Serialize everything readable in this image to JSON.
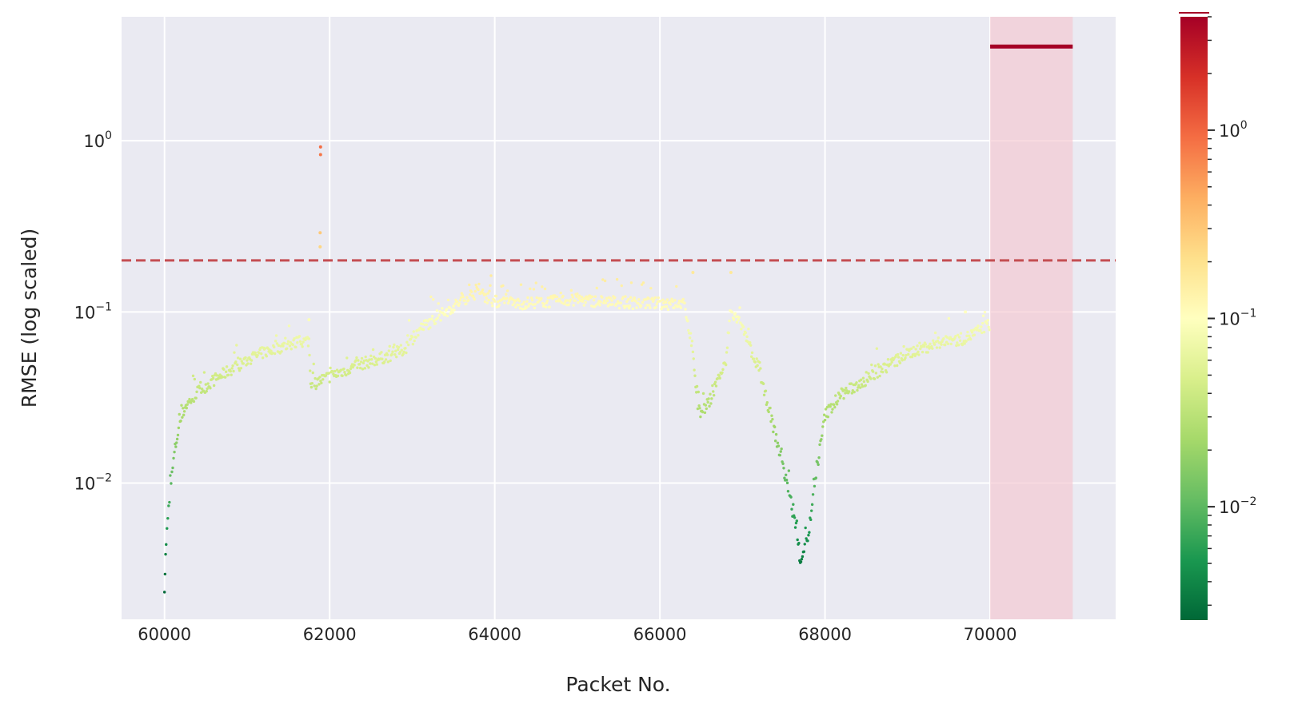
{
  "chart_data": {
    "type": "scatter",
    "title": "",
    "xlabel": "Packet No.",
    "ylabel": "RMSE (log scaled)",
    "yscale": "log",
    "xlim": [
      59480,
      71520
    ],
    "ylim": [
      0.0016,
      5.3
    ],
    "xticks": [
      60000,
      62000,
      64000,
      66000,
      68000,
      70000
    ],
    "xtick_labels": [
      "60000",
      "62000",
      "64000",
      "66000",
      "68000",
      "70000"
    ],
    "yticks": [
      {
        "value": 0.01,
        "base": "10",
        "exp": "−2"
      },
      {
        "value": 0.1,
        "base": "10",
        "exp": "−1"
      },
      {
        "value": 1,
        "base": "10",
        "exp": "0"
      }
    ],
    "grid": true,
    "background": "#eaeaf2",
    "threshold": {
      "value": 0.2,
      "color": "#c44e52",
      "style": "dashed"
    },
    "highlight_region": {
      "x": [
        70000,
        71000
      ],
      "color": "#f4c6cf"
    },
    "colormap": "RdYlGn_r",
    "colorbar": {
      "scale": "log",
      "range": [
        0.0025,
        4.0
      ],
      "ticks": [
        {
          "value": 0.01,
          "base": "10",
          "exp": "−2"
        },
        {
          "value": 0.1,
          "base": "10",
          "exp": "−1"
        },
        {
          "value": 1,
          "base": "10",
          "exp": "0"
        }
      ]
    },
    "trend_points": [
      [
        60000,
        0.0025
      ],
      [
        60020,
        0.0045
      ],
      [
        60050,
        0.007
      ],
      [
        60080,
        0.01
      ],
      [
        60120,
        0.015
      ],
      [
        60180,
        0.022
      ],
      [
        60250,
        0.028
      ],
      [
        60400,
        0.034
      ],
      [
        60600,
        0.04
      ],
      [
        60800,
        0.046
      ],
      [
        61000,
        0.052
      ],
      [
        61200,
        0.058
      ],
      [
        61400,
        0.062
      ],
      [
        61600,
        0.066
      ],
      [
        61750,
        0.068
      ],
      [
        61770,
        0.037
      ],
      [
        61900,
        0.04
      ],
      [
        62100,
        0.044
      ],
      [
        62400,
        0.05
      ],
      [
        62700,
        0.055
      ],
      [
        62900,
        0.06
      ],
      [
        63100,
        0.08
      ],
      [
        63400,
        0.1
      ],
      [
        63700,
        0.125
      ],
      [
        63800,
        0.13
      ],
      [
        64000,
        0.115
      ],
      [
        64300,
        0.112
      ],
      [
        64700,
        0.115
      ],
      [
        65000,
        0.118
      ],
      [
        65300,
        0.115
      ],
      [
        65700,
        0.113
      ],
      [
        66000,
        0.112
      ],
      [
        66300,
        0.11
      ],
      [
        66400,
        0.06
      ],
      [
        66450,
        0.03
      ],
      [
        66500,
        0.025
      ],
      [
        66600,
        0.03
      ],
      [
        66700,
        0.04
      ],
      [
        66800,
        0.05
      ],
      [
        66850,
        0.1
      ],
      [
        66950,
        0.09
      ],
      [
        67100,
        0.06
      ],
      [
        67300,
        0.03
      ],
      [
        67500,
        0.012
      ],
      [
        67650,
        0.0055
      ],
      [
        67700,
        0.0035
      ],
      [
        67800,
        0.005
      ],
      [
        67900,
        0.012
      ],
      [
        68000,
        0.025
      ],
      [
        68200,
        0.033
      ],
      [
        68500,
        0.04
      ],
      [
        68800,
        0.05
      ],
      [
        69100,
        0.06
      ],
      [
        69400,
        0.066
      ],
      [
        69700,
        0.07
      ],
      [
        70000,
        0.085
      ]
    ],
    "outliers": [
      [
        61890,
        0.92
      ],
      [
        61890,
        0.83
      ],
      [
        61885,
        0.29
      ],
      [
        61885,
        0.24
      ],
      [
        61750,
        0.09
      ],
      [
        66400,
        0.17
      ],
      [
        66860,
        0.17
      ],
      [
        69700,
        0.1
      ]
    ],
    "anomaly_segment": {
      "x": [
        70000,
        71000
      ],
      "y": 3.55,
      "color": "#a50026"
    }
  }
}
